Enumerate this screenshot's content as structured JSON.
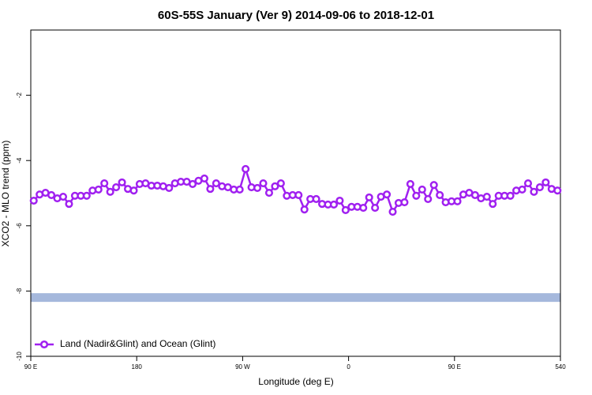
{
  "chart_data": {
    "type": "line",
    "title": "60S-55S January (Ver 9)   2014-09-06 to 2018-12-01",
    "x_label": "Longitude (deg E)",
    "y_label": "XCO2 - MLO trend (ppm)",
    "xlim": [
      90,
      540
    ],
    "xticks": [
      {
        "value": 90,
        "label": "90 E"
      },
      180,
      {
        "value": 270,
        "label": "90 W"
      },
      {
        "value": 360,
        "label": "0"
      },
      {
        "value": 450,
        "label": "90 E"
      },
      540
    ],
    "ylim": [
      -10,
      0
    ],
    "yticks": [
      -10,
      -8,
      -6,
      -4,
      -2
    ],
    "legend_position": "bottom-left",
    "reference_band": {
      "value": -8.2,
      "color": "#a5b8dc"
    },
    "x": [
      92.5,
      97.5,
      102.5,
      107.5,
      112.5,
      117.5,
      122.5,
      127.5,
      132.5,
      137.5,
      142.5,
      147.5,
      152.5,
      157.5,
      162.5,
      167.5,
      172.5,
      177.5,
      182.5,
      187.5,
      192.5,
      197.5,
      202.5,
      207.5,
      212.5,
      217.5,
      222.5,
      227.5,
      232.5,
      237.5,
      242.5,
      247.5,
      252.5,
      257.5,
      262.5,
      267.5,
      272.5,
      277.5,
      282.5,
      287.5,
      292.5,
      297.5,
      302.5,
      307.5,
      312.5,
      317.5,
      322.5,
      327.5,
      332.5,
      337.5,
      342.5,
      347.5,
      352.5,
      357.5,
      362.5,
      367.5,
      372.5,
      377.5,
      382.5,
      387.5,
      392.5,
      397.5,
      402.5,
      407.5,
      412.5,
      417.5,
      422.5,
      427.5,
      432.5,
      437.5,
      442.5,
      447.5,
      452.5,
      457.5,
      462.5,
      467.5,
      472.5,
      477.5,
      482.5,
      487.5,
      492.5,
      497.5,
      502.5,
      507.5,
      512.5,
      517.5,
      522.5,
      527.5,
      532.5,
      537.5
    ],
    "series": [
      {
        "name": "Land (Nadir&Glint) and Ocean (Glint)",
        "color": "#a020f0",
        "values": [
          -5.23,
          -5.04,
          -4.99,
          -5.06,
          -5.16,
          -5.11,
          -5.33,
          -5.08,
          -5.08,
          -5.08,
          -4.92,
          -4.89,
          -4.7,
          -4.96,
          -4.82,
          -4.67,
          -4.87,
          -4.92,
          -4.72,
          -4.7,
          -4.77,
          -4.77,
          -4.79,
          -4.84,
          -4.7,
          -4.65,
          -4.65,
          -4.72,
          -4.62,
          -4.55,
          -4.87,
          -4.7,
          -4.79,
          -4.82,
          -4.89,
          -4.89,
          -4.26,
          -4.82,
          -4.84,
          -4.7,
          -4.99,
          -4.79,
          -4.7,
          -5.08,
          -5.06,
          -5.06,
          -5.5,
          -5.18,
          -5.18,
          -5.33,
          -5.35,
          -5.35,
          -5.23,
          -5.52,
          -5.42,
          -5.42,
          -5.45,
          -5.13,
          -5.45,
          -5.11,
          -5.04,
          -5.57,
          -5.3,
          -5.28,
          -4.72,
          -5.08,
          -4.89,
          -5.18,
          -4.75,
          -5.06,
          -5.28,
          -5.25,
          -5.25,
          -5.04,
          -4.99,
          -5.06,
          -5.16,
          -5.11,
          -5.33,
          -5.08,
          -5.08,
          -5.08,
          -4.92,
          -4.89,
          -4.7,
          -4.96,
          -4.82,
          -4.67,
          -4.87,
          -4.92
        ]
      }
    ]
  }
}
